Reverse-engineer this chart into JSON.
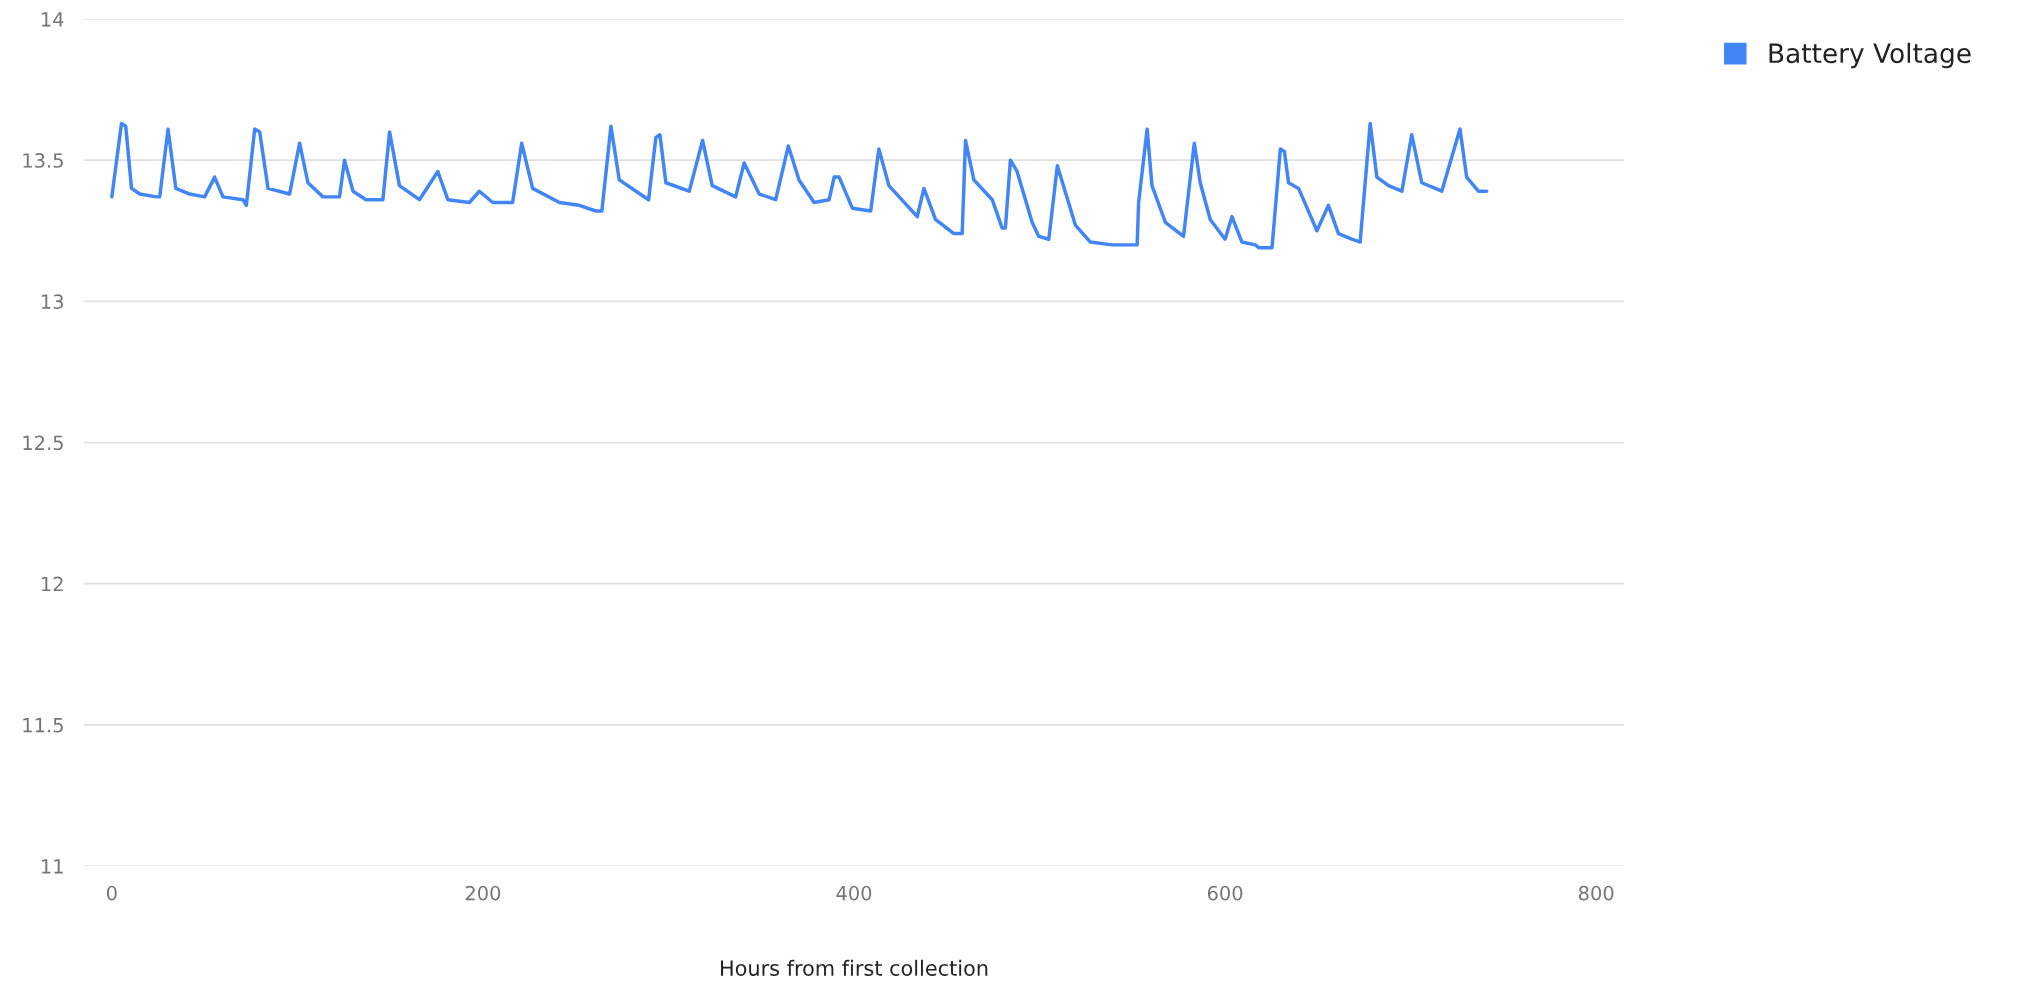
{
  "chart_data": {
    "type": "line",
    "xlabel": "Hours from first collection",
    "x": [
      0,
      5.2,
      7.5,
      10.6,
      15.1,
      24,
      25.8,
      30.3,
      34.5,
      42,
      50,
      55.4,
      59.9,
      70.7,
      72.5,
      77,
      79.7,
      84.2,
      95.8,
      101.2,
      105.7,
      113.8,
      122.7,
      125.4,
      130,
      137,
      146.1,
      149.7,
      155,
      165.8,
      175.7,
      181.1,
      192.7,
      198.1,
      205.3,
      216,
      220.9,
      226.8,
      241.2,
      251.9,
      260.9,
      264.1,
      269,
      273.5,
      282.5,
      289.3,
      293.2,
      295.4,
      298.6,
      311.2,
      318.4,
      323.6,
      336.2,
      340.8,
      348.9,
      357.8,
      364.6,
      370.4,
      378.5,
      386.6,
      389.3,
      392,
      399.1,
      409,
      413.4,
      418.8,
      434.1,
      437.7,
      443.9,
      453.8,
      458.3,
      460.1,
      464.6,
      474.5,
      479.8,
      481.6,
      484.3,
      487.9,
      496,
      499.6,
      505,
      509.6,
      519.3,
      527.4,
      539.1,
      552.6,
      553.4,
      558,
      560.6,
      567.8,
      577.6,
      583.4,
      586.6,
      592,
      600,
      603.7,
      609.1,
      616.3,
      618.1,
      625.3,
      629.8,
      632,
      634.2,
      639.6,
      649.5,
      655.7,
      661.1,
      668.3,
      672.8,
      678.2,
      681.8,
      688.1,
      695.3,
      700.6,
      706,
      716.8,
      726.6,
      730.2,
      736.5,
      741
    ],
    "series": [
      {
        "name": "Battery Voltage",
        "color": "#4285f4",
        "values": [
          13.37,
          13.63,
          13.62,
          13.4,
          13.38,
          13.37,
          13.37,
          13.61,
          13.4,
          13.38,
          13.37,
          13.44,
          13.37,
          13.36,
          13.34,
          13.61,
          13.6,
          13.4,
          13.38,
          13.56,
          13.42,
          13.37,
          13.37,
          13.5,
          13.39,
          13.36,
          13.36,
          13.6,
          13.41,
          13.36,
          13.46,
          13.36,
          13.35,
          13.39,
          13.35,
          13.35,
          13.56,
          13.4,
          13.35,
          13.34,
          13.32,
          13.32,
          13.62,
          13.43,
          13.39,
          13.36,
          13.58,
          13.59,
          13.42,
          13.39,
          13.57,
          13.41,
          13.37,
          13.49,
          13.38,
          13.36,
          13.55,
          13.43,
          13.35,
          13.36,
          13.44,
          13.44,
          13.33,
          13.32,
          13.54,
          13.41,
          13.3,
          13.4,
          13.29,
          13.24,
          13.24,
          13.57,
          13.43,
          13.36,
          13.26,
          13.26,
          13.5,
          13.46,
          13.28,
          13.23,
          13.22,
          13.48,
          13.27,
          13.21,
          13.2,
          13.2,
          13.35,
          13.61,
          13.41,
          13.28,
          13.23,
          13.56,
          13.42,
          13.29,
          13.22,
          13.3,
          13.21,
          13.2,
          13.19,
          13.19,
          13.54,
          13.53,
          13.42,
          13.4,
          13.25,
          13.34,
          13.24,
          13.22,
          13.21,
          13.63,
          13.44,
          13.41,
          13.39,
          13.59,
          13.42,
          13.39,
          13.61,
          13.44,
          13.39,
          13.39
        ]
      }
    ],
    "xlim": [
      -15,
      815
    ],
    "xticks": [
      0,
      200,
      400,
      600,
      800
    ],
    "ylim": [
      11,
      14
    ],
    "yticks": [
      11,
      11.5,
      12,
      12.5,
      13,
      13.5,
      14
    ],
    "grid": "y",
    "legend": "top right",
    "marker": "none",
    "line_style": "solid"
  }
}
